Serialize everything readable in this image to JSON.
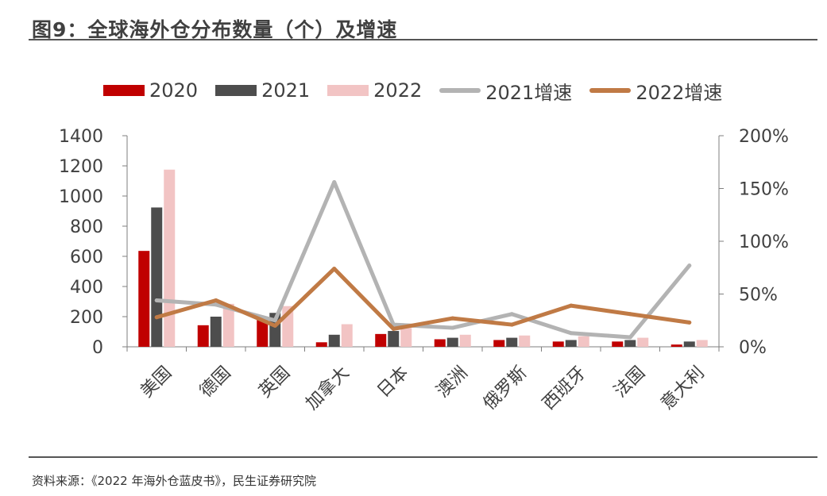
{
  "header": {
    "title": "图9：全球海外仓分布数量（个）及增速"
  },
  "footer": {
    "source": "资料来源：《2022 年海外仓蓝皮书》，民生证券研究院"
  },
  "colors": {
    "s2020": "#c00000",
    "s2021": "#4d4d4d",
    "s2022": "#f2c4c4",
    "g2021": "#b3b3b3",
    "g2022": "#c07a45"
  },
  "chart_data": {
    "type": "bar",
    "title": "图9：全球海外仓分布数量（个）及增速",
    "categories": [
      "美国",
      "德国",
      "英国",
      "加拿大",
      "日本",
      "澳洲",
      "俄罗斯",
      "西班牙",
      "法国",
      "意大利"
    ],
    "series": [
      {
        "name": "2020",
        "type": "bar",
        "axis": "left",
        "values": [
          636,
          143,
          180,
          30,
          85,
          50,
          45,
          35,
          35,
          15
        ]
      },
      {
        "name": "2021",
        "type": "bar",
        "axis": "left",
        "values": [
          924,
          200,
          225,
          80,
          105,
          60,
          60,
          45,
          45,
          35
        ]
      },
      {
        "name": "2022",
        "type": "bar",
        "axis": "left",
        "values": [
          1175,
          285,
          270,
          150,
          125,
          80,
          75,
          70,
          60,
          45
        ]
      },
      {
        "name": "2021增速",
        "type": "line",
        "axis": "right",
        "values": [
          0.44,
          0.4,
          0.25,
          1.56,
          0.21,
          0.18,
          0.31,
          0.13,
          0.09,
          0.77
        ]
      },
      {
        "name": "2022增速",
        "type": "line",
        "axis": "right",
        "values": [
          0.28,
          0.44,
          0.2,
          0.74,
          0.17,
          0.27,
          0.21,
          0.39,
          0.31,
          0.23
        ]
      }
    ],
    "y_left": {
      "min": 0,
      "max": 1400,
      "ticks": [
        "0",
        "200",
        "400",
        "600",
        "800",
        "1000",
        "1200",
        "1400"
      ]
    },
    "y_right": {
      "min": 0,
      "max": 2,
      "ticks": [
        "0%",
        "50%",
        "100%",
        "150%",
        "200%"
      ]
    },
    "legend_position": "top",
    "grid": false
  }
}
